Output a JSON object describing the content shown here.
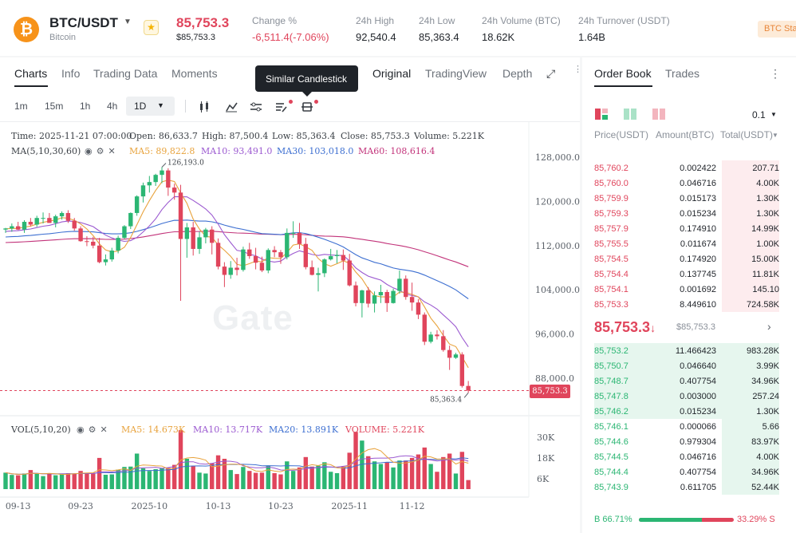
{
  "header": {
    "logo_letter": "₿",
    "pair": "BTC/USDT",
    "name": "Bitcoin",
    "price": "85,753.3",
    "price_sub": "$85,753.3",
    "stats": [
      {
        "label": "Change %",
        "value": "-6,511.4(-7.06%)"
      },
      {
        "label": "24h High",
        "value": "92,540.4"
      },
      {
        "label": "24h Low",
        "value": "85,363.4"
      },
      {
        "label": "24h Volume (BTC)",
        "value": "18.62K"
      },
      {
        "label": "24h Turnover (USDT)",
        "value": "1.64B"
      }
    ],
    "badge": "BTC Sta",
    "colors": {
      "down": "#e0455c",
      "up": "#2bb673",
      "btc": "#f7931a"
    }
  },
  "chart_tabs": [
    "Charts",
    "Info",
    "Trading Data",
    "Moments"
  ],
  "view_tabs": [
    "Original",
    "TradingView",
    "Depth"
  ],
  "tooltip": "Similar Candlestick",
  "timeframes": [
    "1m",
    "15m",
    "1h",
    "4h",
    "1D"
  ],
  "active_timeframe": "1D",
  "info": {
    "time": "Time: 2025-11-21 07:00:00",
    "open": "Open: 86,633.7",
    "high": "High: 87,500.4",
    "low": "Low: 85,363.4",
    "close": "Close: 85,753.3",
    "volume": "Volume: 5.221K"
  },
  "ma": {
    "label": "MA(5,10,30,60)",
    "ma5": "MA5: 89,822.8",
    "ma10": "MA10: 93,491.0",
    "ma30": "MA30: 103,018.0",
    "ma60": "MA60: 108,616.4",
    "colors": {
      "ma5": "#e8a33d",
      "ma10": "#9b59d0",
      "ma30": "#3d6fd1",
      "ma60": "#c2337a"
    }
  },
  "vol": {
    "label": "VOL(5,10,20)",
    "ma5": "MA5: 14.673K",
    "ma10": "MA10: 13.717K",
    "ma20": "MA20: 13.891K",
    "volume": "VOLUME: 5.221K"
  },
  "watermark": "Gate",
  "chart_data": {
    "type": "candlestick",
    "title": "",
    "price_axis": [
      "128,000.0",
      "120,000.0",
      "112,000.0",
      "104,000.0",
      "96,000.0",
      "88,000.0"
    ],
    "volume_axis": [
      "30K",
      "18K",
      "6K"
    ],
    "x_labels": [
      "09-13",
      "09-23",
      "2025-10",
      "10-13",
      "10-23",
      "2025-11",
      "11-12"
    ],
    "max_label": "126,193.0",
    "min_label": "85,363.4",
    "current_price": "85,753.3",
    "ylim": [
      84000,
      131000
    ],
    "vol_ylim": [
      0,
      36000
    ],
    "candles": [
      [
        114900,
        115200,
        114300,
        115100,
        9500
      ],
      [
        115100,
        116000,
        114500,
        115500,
        8200
      ],
      [
        115500,
        116300,
        114800,
        114900,
        8000
      ],
      [
        114900,
        116600,
        114300,
        116300,
        9000
      ],
      [
        116300,
        117000,
        115500,
        115800,
        11000
      ],
      [
        115800,
        117400,
        115400,
        117000,
        8800
      ],
      [
        117000,
        118000,
        116000,
        117000,
        7500
      ],
      [
        117000,
        117900,
        116400,
        116100,
        9000
      ],
      [
        116100,
        117600,
        115300,
        117300,
        8000
      ],
      [
        117300,
        118200,
        116700,
        117900,
        9000
      ],
      [
        117900,
        118400,
        116100,
        116500,
        9200
      ],
      [
        116500,
        117000,
        114700,
        115100,
        9000
      ],
      [
        115100,
        115500,
        112700,
        112800,
        10500
      ],
      [
        112800,
        113700,
        111900,
        112700,
        9000
      ],
      [
        112700,
        113600,
        111500,
        112000,
        9400
      ],
      [
        112000,
        113400,
        108800,
        109000,
        18000
      ],
      [
        109000,
        110400,
        108400,
        109500,
        8300
      ],
      [
        109500,
        111600,
        109100,
        111100,
        8500
      ],
      [
        111100,
        113800,
        110600,
        113400,
        11200
      ],
      [
        113400,
        115700,
        113200,
        115500,
        12800
      ],
      [
        115500,
        118000,
        115000,
        117900,
        13000
      ],
      [
        117900,
        121100,
        117400,
        120900,
        20500
      ],
      [
        120900,
        123400,
        119800,
        122900,
        12000
      ],
      [
        122900,
        124600,
        121600,
        123500,
        10500
      ],
      [
        123500,
        125000,
        122800,
        124800,
        11500
      ],
      [
        124800,
        126193,
        123300,
        125600,
        12000
      ],
      [
        125600,
        126000,
        121000,
        122500,
        12200
      ],
      [
        122500,
        123200,
        120300,
        121600,
        14000
      ],
      [
        121600,
        123000,
        102000,
        113200,
        34000
      ],
      [
        113200,
        116100,
        109800,
        115300,
        17500
      ],
      [
        115300,
        116300,
        110200,
        111400,
        13500
      ],
      [
        111400,
        114500,
        110500,
        113500,
        9500
      ],
      [
        113500,
        115200,
        112400,
        114900,
        9000
      ],
      [
        114900,
        115500,
        110400,
        112500,
        15000
      ],
      [
        112500,
        113300,
        107700,
        108200,
        19500
      ],
      [
        108200,
        109000,
        104500,
        106700,
        17500
      ],
      [
        106700,
        109200,
        106000,
        108000,
        11000
      ],
      [
        108000,
        109800,
        106600,
        107600,
        8700
      ],
      [
        107600,
        111800,
        107300,
        111300,
        12800
      ],
      [
        111300,
        112500,
        109600,
        110100,
        10500
      ],
      [
        110100,
        111600,
        107700,
        108900,
        9400
      ],
      [
        108900,
        110000,
        107200,
        107500,
        9500
      ],
      [
        107500,
        111500,
        107000,
        111200,
        13500
      ],
      [
        111200,
        111900,
        109900,
        110800,
        9200
      ],
      [
        110800,
        111200,
        108700,
        109900,
        8500
      ],
      [
        109900,
        115100,
        109500,
        114300,
        16000
      ],
      [
        114300,
        116400,
        113400,
        114300,
        10500
      ],
      [
        114300,
        116100,
        111400,
        112300,
        12500
      ],
      [
        112300,
        113400,
        107700,
        108100,
        18500
      ],
      [
        108100,
        109300,
        106600,
        106700,
        13000
      ],
      [
        106700,
        108000,
        103700,
        107000,
        13500
      ],
      [
        107000,
        109700,
        106300,
        109500,
        15500
      ],
      [
        109500,
        111400,
        109300,
        110100,
        10000
      ],
      [
        110100,
        111200,
        108800,
        110300,
        9200
      ],
      [
        110300,
        111300,
        107600,
        109300,
        13000
      ],
      [
        109300,
        110500,
        104600,
        104800,
        21000
      ],
      [
        104800,
        105500,
        101000,
        101600,
        33000
      ],
      [
        101600,
        104000,
        99000,
        103900,
        28000
      ],
      [
        103900,
        104500,
        100800,
        101500,
        19000
      ],
      [
        101500,
        103700,
        99900,
        103000,
        16000
      ],
      [
        103000,
        104900,
        101600,
        103600,
        14500
      ],
      [
        103600,
        104000,
        100000,
        101600,
        15500
      ],
      [
        101600,
        104200,
        101500,
        103800,
        12500
      ],
      [
        103800,
        107500,
        103300,
        106000,
        16500
      ],
      [
        106000,
        106600,
        102200,
        102700,
        16500
      ],
      [
        102700,
        105300,
        100200,
        101700,
        18000
      ],
      [
        101700,
        102300,
        98700,
        99500,
        20000
      ],
      [
        99500,
        99900,
        94000,
        94600,
        24000
      ],
      [
        94600,
        96400,
        94300,
        95900,
        14500
      ],
      [
        95900,
        96700,
        95000,
        95600,
        10000
      ],
      [
        95600,
        96700,
        92800,
        93100,
        18500
      ],
      [
        93100,
        93900,
        89500,
        91700,
        20500
      ],
      [
        91700,
        92600,
        91500,
        92300,
        9000
      ],
      [
        92300,
        92700,
        86300,
        86600,
        21500
      ],
      [
        86600,
        87500,
        85363.4,
        85753.3,
        5221
      ]
    ]
  },
  "orderbook": {
    "tabs": [
      "Order Book",
      "Trades"
    ],
    "precision": "0.1",
    "headers": [
      "Price(USDT)",
      "Amount(BTC)",
      "Total(USDT)"
    ],
    "asks": [
      {
        "price": "85,760.2",
        "amount": "0.002422",
        "total": "207.71",
        "depth": 0.31
      },
      {
        "price": "85,760.0",
        "amount": "0.046716",
        "total": "4.00K",
        "depth": 0.31
      },
      {
        "price": "85,759.9",
        "amount": "0.015173",
        "total": "1.30K",
        "depth": 0.31
      },
      {
        "price": "85,759.3",
        "amount": "0.015234",
        "total": "1.30K",
        "depth": 0.31
      },
      {
        "price": "85,757.9",
        "amount": "0.174910",
        "total": "14.99K",
        "depth": 0.31
      },
      {
        "price": "85,755.5",
        "amount": "0.011674",
        "total": "1.00K",
        "depth": 0.31
      },
      {
        "price": "85,754.5",
        "amount": "0.174920",
        "total": "15.00K",
        "depth": 0.31
      },
      {
        "price": "85,754.4",
        "amount": "0.137745",
        "total": "11.81K",
        "depth": 0.31
      },
      {
        "price": "85,754.1",
        "amount": "0.001692",
        "total": "145.10",
        "depth": 0.31
      },
      {
        "price": "85,753.3",
        "amount": "8.449610",
        "total": "724.58K",
        "depth": 0.31
      }
    ],
    "mid_price": "85,753.3",
    "mid_arrow": "↓",
    "mid_sub": "$85,753.3",
    "bids": [
      {
        "price": "85,753.2",
        "amount": "11.466423",
        "total": "983.28K",
        "depth": 1.0
      },
      {
        "price": "85,750.7",
        "amount": "0.046640",
        "total": "3.99K",
        "depth": 1.0
      },
      {
        "price": "85,748.7",
        "amount": "0.407754",
        "total": "34.96K",
        "depth": 1.0
      },
      {
        "price": "85,747.8",
        "amount": "0.003000",
        "total": "257.24",
        "depth": 1.0
      },
      {
        "price": "85,746.2",
        "amount": "0.015234",
        "total": "1.30K",
        "depth": 1.0
      },
      {
        "price": "85,746.1",
        "amount": "0.000066",
        "total": "5.66",
        "depth": 0.31
      },
      {
        "price": "85,744.6",
        "amount": "0.979304",
        "total": "83.97K",
        "depth": 0.31
      },
      {
        "price": "85,744.5",
        "amount": "0.046716",
        "total": "4.00K",
        "depth": 0.31
      },
      {
        "price": "85,744.4",
        "amount": "0.407754",
        "total": "34.96K",
        "depth": 0.31
      },
      {
        "price": "85,743.9",
        "amount": "0.611705",
        "total": "52.44K",
        "depth": 0.31
      }
    ],
    "buy_ratio": "B 66.71%",
    "sell_ratio": "33.29% S",
    "buy_fraction": 0.6671
  }
}
